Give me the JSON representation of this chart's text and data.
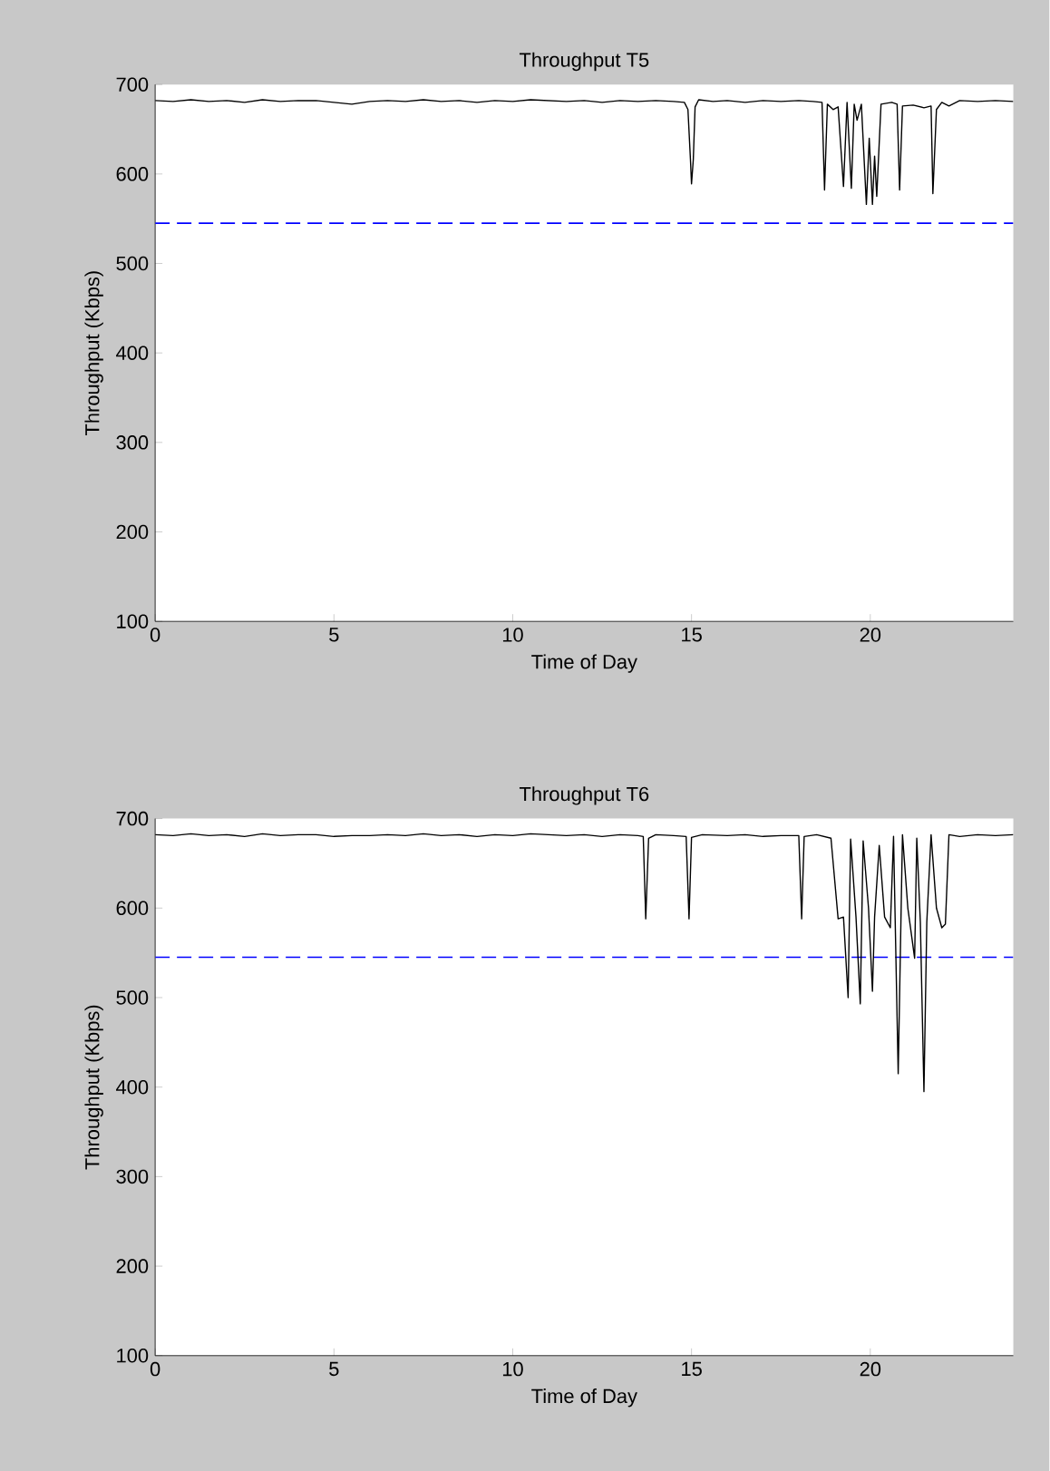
{
  "chart_data": [
    {
      "type": "line",
      "title": "Throughput T5",
      "xlabel": "Time of Day",
      "ylabel": "Throughput (Kbps)",
      "xlim": [
        0,
        24
      ],
      "ylim": [
        100,
        700
      ],
      "xticks": [
        0,
        5,
        10,
        15,
        20
      ],
      "yticks": [
        100,
        200,
        300,
        400,
        500,
        600,
        700
      ],
      "grid": false,
      "x": [
        0,
        0.5,
        1,
        1.5,
        2,
        2.5,
        3,
        3.5,
        4,
        4.5,
        5,
        5.5,
        6,
        6.5,
        7,
        7.5,
        8,
        8.5,
        9,
        9.5,
        10,
        10.5,
        11,
        11.5,
        12,
        12.5,
        13,
        13.5,
        14,
        14.5,
        14.8,
        14.9,
        14.97,
        15.0,
        15.05,
        15.1,
        15.2,
        15.6,
        16,
        16.5,
        17,
        17.5,
        18,
        18.4,
        18.65,
        18.72,
        18.8,
        18.96,
        19.1,
        19.25,
        19.35,
        19.47,
        19.55,
        19.63,
        19.75,
        19.89,
        19.97,
        20.06,
        20.12,
        20.18,
        20.3,
        20.6,
        20.75,
        20.82,
        20.9,
        21.2,
        21.5,
        21.7,
        21.75,
        21.85,
        22,
        22.2,
        22.5,
        23,
        23.5,
        24
      ],
      "series": [
        {
          "color": "#000000",
          "values": [
            682,
            681,
            683,
            681,
            682,
            680,
            683,
            681,
            682,
            682,
            680,
            678,
            681,
            682,
            681,
            683,
            681,
            682,
            680,
            682,
            681,
            683,
            682,
            681,
            682,
            680,
            682,
            681,
            682,
            681,
            680,
            672,
            616,
            589,
            616,
            675,
            683,
            681,
            682,
            680,
            682,
            681,
            682,
            681,
            680,
            582,
            678,
            672,
            675,
            586,
            680,
            584,
            678,
            660,
            678,
            566,
            640,
            566,
            620,
            575,
            678,
            680,
            678,
            582,
            676,
            677,
            674,
            676,
            578,
            672,
            680,
            676,
            682,
            681,
            682,
            681
          ]
        }
      ],
      "ref_lines": [
        {
          "axis": "y",
          "value": 545,
          "color": "#0000ff",
          "line_style": "dashed"
        }
      ]
    },
    {
      "type": "line",
      "title": "Throughput T6",
      "xlabel": "Time of Day",
      "ylabel": "Throughput (Kbps)",
      "xlim": [
        0,
        24
      ],
      "ylim": [
        100,
        700
      ],
      "xticks": [
        0,
        5,
        10,
        15,
        20
      ],
      "yticks": [
        100,
        200,
        300,
        400,
        500,
        600,
        700
      ],
      "grid": false,
      "x": [
        0,
        0.5,
        1,
        1.5,
        2,
        2.5,
        3,
        3.5,
        4,
        4.5,
        5,
        5.5,
        6,
        6.5,
        7,
        7.5,
        8,
        8.5,
        9,
        9.5,
        10,
        10.5,
        11,
        11.5,
        12,
        12.5,
        13,
        13.5,
        13.65,
        13.72,
        13.8,
        14.0,
        14.5,
        14.85,
        14.93,
        15.0,
        15.3,
        16,
        16.5,
        17,
        17.5,
        18.0,
        18.08,
        18.15,
        18.5,
        18.9,
        19.1,
        19.25,
        19.38,
        19.45,
        19.6,
        19.72,
        19.8,
        19.95,
        20.06,
        20.12,
        20.25,
        20.4,
        20.56,
        20.65,
        20.78,
        20.9,
        21.05,
        21.24,
        21.3,
        21.4,
        21.5,
        21.58,
        21.7,
        21.85,
        22.0,
        22.1,
        22.2,
        22.5,
        23,
        23.5,
        24
      ],
      "series": [
        {
          "color": "#000000",
          "values": [
            682,
            681,
            683,
            681,
            682,
            680,
            683,
            681,
            682,
            682,
            680,
            681,
            681,
            682,
            681,
            683,
            681,
            682,
            680,
            682,
            681,
            683,
            682,
            681,
            682,
            680,
            682,
            681,
            680,
            588,
            678,
            682,
            681,
            680,
            588,
            679,
            682,
            681,
            682,
            680,
            681,
            681,
            588,
            680,
            682,
            678,
            588,
            590,
            500,
            677,
            590,
            493,
            675,
            600,
            507,
            590,
            670,
            590,
            578,
            680,
            415,
            682,
            600,
            544,
            678,
            584,
            395,
            584,
            682,
            600,
            578,
            582,
            682,
            680,
            682,
            681,
            682
          ]
        }
      ],
      "ref_lines": [
        {
          "axis": "y",
          "value": 545,
          "color": "#0000ff",
          "line_style": "dashed"
        }
      ]
    }
  ]
}
